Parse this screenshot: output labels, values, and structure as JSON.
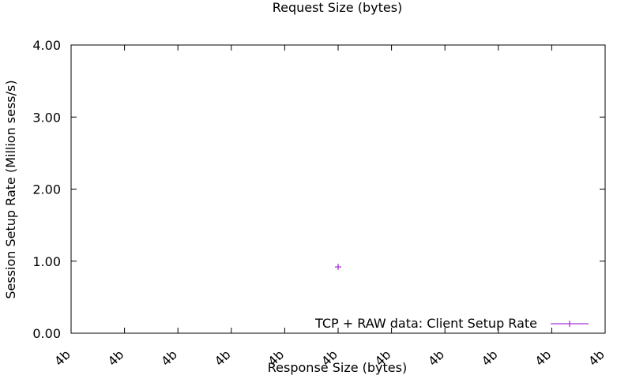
{
  "chart_data": {
    "type": "scatter",
    "title": "Request Size (bytes)",
    "xlabel": "Response Size (bytes)",
    "ylabel": "Session Setup Rate (Million sess/s)",
    "xticks": [
      "4b",
      "4b",
      "4b",
      "4b",
      "4b",
      "4b",
      "4b",
      "4b",
      "4b",
      "4b",
      "4b"
    ],
    "yticks": [
      "0.00",
      "1.00",
      "2.00",
      "3.00",
      "4.00"
    ],
    "ylim": [
      0,
      4
    ],
    "grid": false,
    "legend_position": "bottom-right",
    "series": [
      {
        "name": "TCP + RAW data: Client Setup Rate",
        "color": "#9400D3",
        "marker": "plus",
        "points": [
          {
            "x_index": 5,
            "y": 0.92
          }
        ]
      }
    ]
  }
}
